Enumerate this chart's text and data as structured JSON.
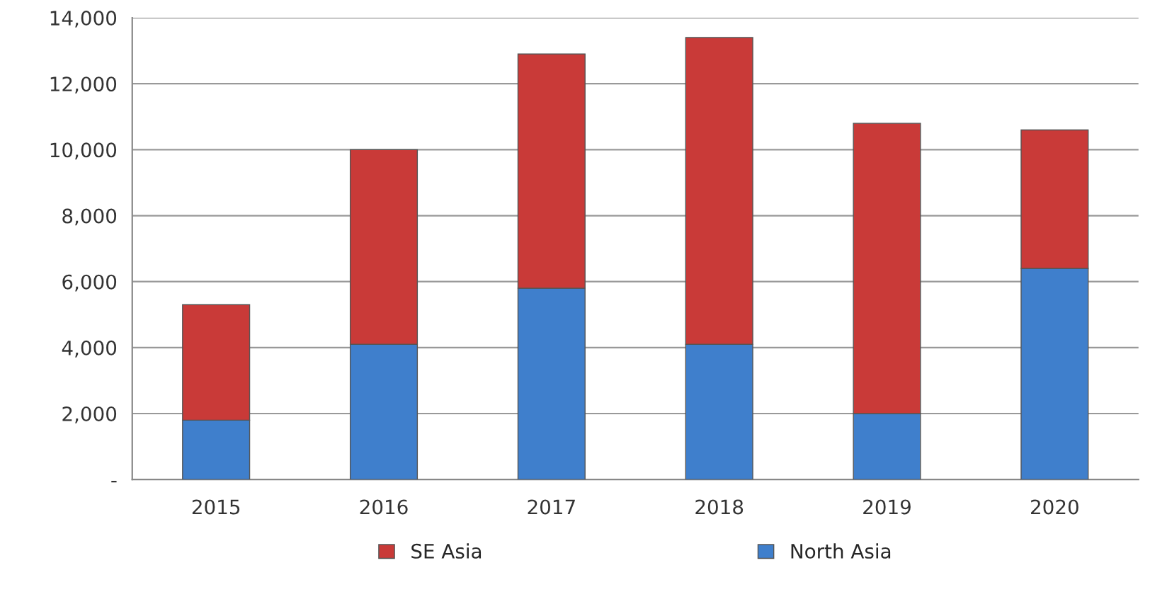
{
  "chart_data": {
    "type": "bar",
    "stacked": true,
    "categories": [
      "2015",
      "2016",
      "2017",
      "2018",
      "2019",
      "2020"
    ],
    "series": [
      {
        "name": "North Asia",
        "color": "#3f7fcc",
        "values": [
          1800,
          4100,
          5800,
          4100,
          2000,
          6400
        ]
      },
      {
        "name": "SE Asia",
        "color": "#c93a38",
        "values": [
          3500,
          5900,
          7100,
          9300,
          8800,
          4200
        ]
      }
    ],
    "ylim": [
      0,
      14000
    ],
    "yticks": [
      {
        "value": 0,
        "label": "-"
      },
      {
        "value": 2000,
        "label": "2,000"
      },
      {
        "value": 4000,
        "label": "4,000"
      },
      {
        "value": 6000,
        "label": "6,000"
      },
      {
        "value": 8000,
        "label": "8,000"
      },
      {
        "value": 10000,
        "label": "10,000"
      },
      {
        "value": 12000,
        "label": "12,000"
      },
      {
        "value": 14000,
        "label": "14,000"
      }
    ],
    "grid": "y",
    "legend": "bottom"
  }
}
